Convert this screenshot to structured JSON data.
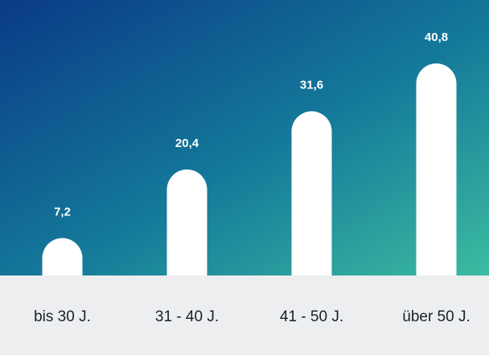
{
  "chart_data": {
    "type": "bar",
    "categories": [
      "bis 30 J.",
      "31 - 40 J.",
      "41 - 50 J.",
      "über 50 J."
    ],
    "values": [
      7.2,
      20.4,
      31.6,
      40.8
    ],
    "value_labels": [
      "7,2",
      "20,4",
      "31,6",
      "40,8"
    ],
    "title": "",
    "xlabel": "",
    "ylabel": "",
    "ylim": [
      0,
      45
    ],
    "grid": false,
    "legend": "none"
  },
  "colors": {
    "gradient_start": "#0a3a86",
    "gradient_mid": "#147a9a",
    "gradient_end": "#3cbba0",
    "bar": "#ffffff",
    "value_label": "#ffffff",
    "footer_band": "#eceef0",
    "category_label": "#1a1f2b"
  }
}
